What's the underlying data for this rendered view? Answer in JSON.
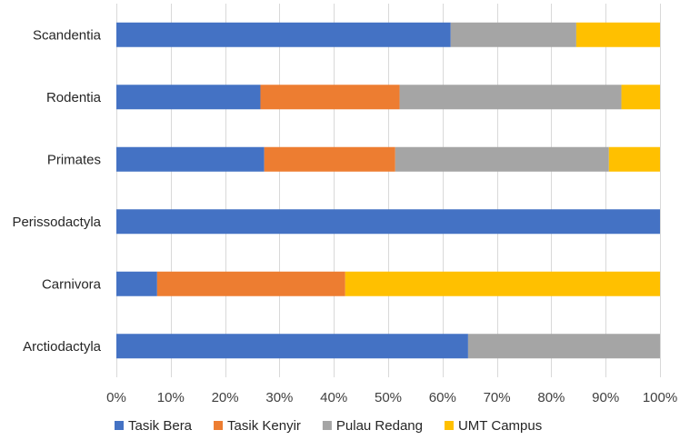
{
  "chart_data": {
    "type": "bar",
    "orientation": "horizontal",
    "stacked": "percent",
    "title": "",
    "xlabel": "",
    "ylabel": "",
    "xlim": [
      0,
      100
    ],
    "x_ticks": [
      "0%",
      "10%",
      "20%",
      "30%",
      "40%",
      "50%",
      "60%",
      "70%",
      "80%",
      "90%",
      "100%"
    ],
    "grid": true,
    "legend_position": "bottom",
    "categories": [
      "Scandentia",
      "Rodentia",
      "Primates",
      "Perissodactyla",
      "Carnivora",
      "Arctiodactyla"
    ],
    "series": [
      {
        "name": "Tasik Bera",
        "color": "#4472C4",
        "values": [
          61.5,
          26.5,
          27.2,
          100,
          7.5,
          64.7
        ]
      },
      {
        "name": "Tasik Kenyir",
        "color": "#ED7D31",
        "values": [
          0,
          25.6,
          24.1,
          0,
          34.6,
          0
        ]
      },
      {
        "name": "Pulau Redang",
        "color": "#A5A5A5",
        "values": [
          23.1,
          40.8,
          39.3,
          0,
          0,
          35.3
        ]
      },
      {
        "name": "UMT Campus",
        "color": "#FFC000",
        "values": [
          15.4,
          7.1,
          9.4,
          0,
          57.9,
          0
        ]
      }
    ]
  }
}
